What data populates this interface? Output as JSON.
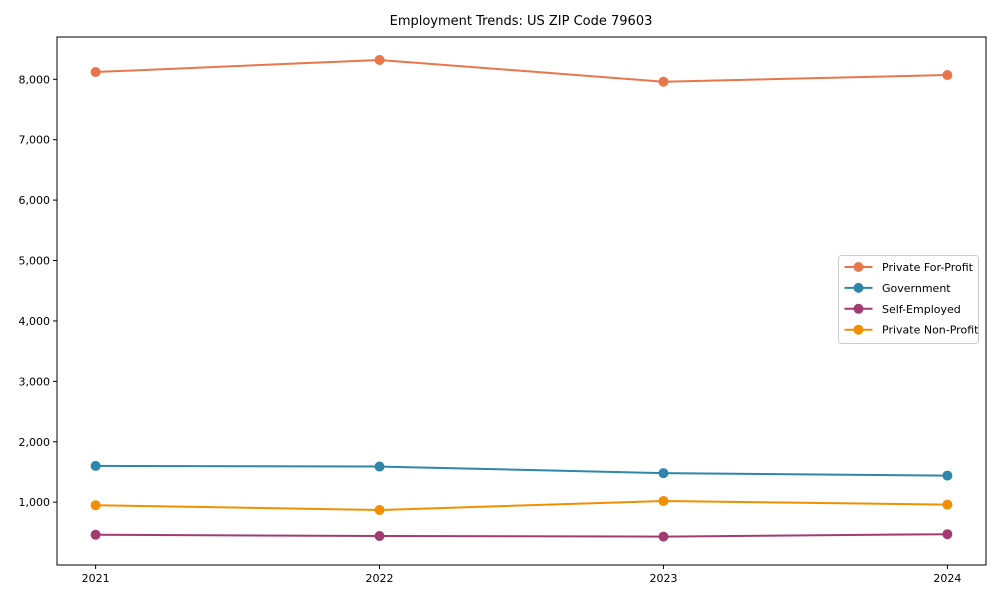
{
  "chart_data": {
    "type": "line",
    "title": "Employment Trends: US ZIP Code 79603",
    "x": [
      "2021",
      "2022",
      "2023",
      "2024"
    ],
    "x_numeric": [
      2021,
      2022,
      2023,
      2024
    ],
    "series": [
      {
        "name": "Private For-Profit",
        "color": "#E8764A",
        "values": [
          8120,
          8320,
          7960,
          8070
        ]
      },
      {
        "name": "Government",
        "color": "#2E86AB",
        "values": [
          1600,
          1590,
          1480,
          1440
        ]
      },
      {
        "name": "Self-Employed",
        "color": "#A23B72",
        "values": [
          460,
          440,
          430,
          470
        ]
      },
      {
        "name": "Private Non-Profit",
        "color": "#F18F01",
        "values": [
          950,
          870,
          1020,
          960
        ]
      }
    ],
    "yticks": [
      1000,
      2000,
      3000,
      4000,
      5000,
      6000,
      7000,
      8000
    ],
    "ytick_labels": [
      "1,000",
      "2,000",
      "3,000",
      "4,000",
      "5,000",
      "6,000",
      "7,000",
      "8,000"
    ],
    "ylim": [
      -40,
      8700
    ],
    "xlim": [
      2020.864,
      2024.136
    ],
    "grid": false,
    "legend": {
      "position": "center-right",
      "labels": [
        "Private For-Profit",
        "Government",
        "Self-Employed",
        "Private Non-Profit"
      ]
    }
  },
  "style": {
    "background": "#ffffff",
    "axis_color": "#000000",
    "tick_color": "#000000",
    "legend_border_color": "#cccccc",
    "legend_background": "#ffffff"
  }
}
